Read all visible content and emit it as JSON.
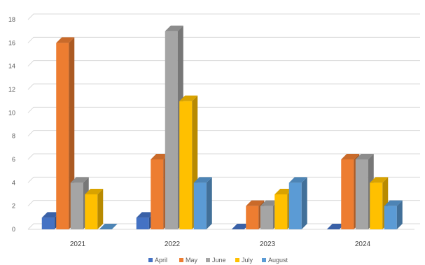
{
  "chart_data": {
    "type": "bar",
    "categories": [
      "2021",
      "2022",
      "2023",
      "2024"
    ],
    "series": [
      {
        "name": "April",
        "color": "#4472C4",
        "values": [
          1,
          1,
          0,
          0
        ]
      },
      {
        "name": "May",
        "color": "#ED7D31",
        "values": [
          16,
          6,
          2,
          6
        ]
      },
      {
        "name": "June",
        "color": "#A5A5A5",
        "values": [
          4,
          17,
          2,
          6
        ]
      },
      {
        "name": "July",
        "color": "#FFC000",
        "values": [
          3,
          11,
          3,
          4
        ]
      },
      {
        "name": "August",
        "color": "#5B9BD5",
        "values": [
          0,
          4,
          4,
          2
        ]
      }
    ],
    "yticks": [
      "0",
      "2",
      "4",
      "6",
      "8",
      "10",
      "12",
      "14",
      "16",
      "18"
    ],
    "ylim": [
      0,
      18
    ],
    "grid": true,
    "legend_position": "bottom",
    "style": "3d-clustered-column"
  }
}
